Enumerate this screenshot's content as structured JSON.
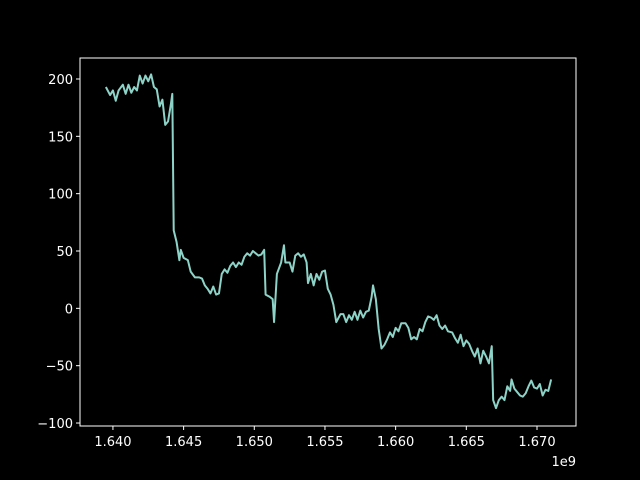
{
  "chart_data": {
    "type": "line",
    "x": [
      1639500000,
      1639800000,
      1640000000,
      1640200000,
      1640400000,
      1640700000,
      1640900000,
      1641100000,
      1641300000,
      1641500000,
      1641700000,
      1641900000,
      1642100000,
      1642300000,
      1642500000,
      1642700000,
      1642900000,
      1643100000,
      1643300000,
      1643500000,
      1643700000,
      1643900000,
      1644100000,
      1644200000,
      1644300000,
      1644500000,
      1644700000,
      1644800000,
      1645000000,
      1645300000,
      1645500000,
      1645800000,
      1646100000,
      1646300000,
      1646500000,
      1646700000,
      1646900000,
      1647100000,
      1647300000,
      1647500000,
      1647700000,
      1647900000,
      1648100000,
      1648300000,
      1648500000,
      1648700000,
      1648900000,
      1649100000,
      1649300000,
      1649500000,
      1649700000,
      1649900000,
      1650100000,
      1650300000,
      1650500000,
      1650700000,
      1650800000,
      1651100000,
      1651300000,
      1651400000,
      1651600000,
      1651900000,
      1652100000,
      1652200000,
      1652500000,
      1652700000,
      1652900000,
      1653100000,
      1653300000,
      1653500000,
      1653700000,
      1653800000,
      1654000000,
      1654200000,
      1654400000,
      1654600000,
      1654800000,
      1655000000,
      1655200000,
      1655400000,
      1655600000,
      1655800000,
      1656100000,
      1656300000,
      1656500000,
      1656700000,
      1656900000,
      1657100000,
      1657300000,
      1657500000,
      1657700000,
      1657900000,
      1658100000,
      1658300000,
      1658400000,
      1658600000,
      1658800000,
      1659000000,
      1659200000,
      1659400000,
      1659600000,
      1659800000,
      1660000000,
      1660200000,
      1660400000,
      1660700000,
      1660900000,
      1661100000,
      1661300000,
      1661500000,
      1661700000,
      1661900000,
      1662100000,
      1662300000,
      1662500000,
      1662700000,
      1662900000,
      1663100000,
      1663300000,
      1663500000,
      1663700000,
      1664000000,
      1664200000,
      1664400000,
      1664600000,
      1664800000,
      1665000000,
      1665200000,
      1665400000,
      1665600000,
      1665800000,
      1666000000,
      1666200000,
      1666400000,
      1666600000,
      1666800000,
      1666900000,
      1667100000,
      1667300000,
      1667500000,
      1667700000,
      1667900000,
      1668100000,
      1668200000,
      1668400000,
      1668600000,
      1668800000,
      1669000000,
      1669200000,
      1669400000,
      1669600000,
      1669800000,
      1670000000,
      1670200000,
      1670400000,
      1670600000,
      1670800000,
      1671000000
    ],
    "series": [
      {
        "color": "#8dd3c7",
        "values": [
          193,
          186,
          190,
          181,
          190,
          195,
          187,
          195,
          188,
          193,
          190,
          203,
          196,
          203,
          198,
          204,
          193,
          191,
          176,
          182,
          160,
          163,
          178,
          187,
          68,
          58,
          42,
          51,
          44,
          42,
          32,
          27,
          27,
          26,
          20,
          17,
          13,
          19,
          12,
          13,
          30,
          34,
          31,
          37,
          40,
          36,
          40,
          38,
          45,
          48,
          46,
          50,
          48,
          46,
          47,
          51,
          12,
          10,
          8,
          -12,
          30,
          40,
          55,
          40,
          40,
          32,
          46,
          48,
          45,
          47,
          40,
          22,
          30,
          20,
          30,
          25,
          32,
          33,
          17,
          12,
          3,
          -12,
          -5,
          -5,
          -12,
          -6,
          -10,
          -3,
          -10,
          -2,
          -8,
          -3,
          -2,
          10,
          20,
          8,
          -18,
          -35,
          -32,
          -27,
          -21,
          -25,
          -17,
          -20,
          -13,
          -13,
          -17,
          -27,
          -25,
          -27,
          -18,
          -20,
          -12,
          -7,
          -8,
          -10,
          -6,
          -15,
          -18,
          -15,
          -20,
          -21,
          -26,
          -30,
          -23,
          -33,
          -28,
          -31,
          -37,
          -42,
          -35,
          -48,
          -37,
          -42,
          -48,
          -33,
          -80,
          -87,
          -80,
          -77,
          -80,
          -68,
          -72,
          -62,
          -70,
          -73,
          -76,
          -77,
          -74,
          -68,
          -63,
          -69,
          -70,
          -66,
          -76,
          -71,
          -72,
          -62
        ]
      }
    ],
    "xlim": [
      1637670000,
      1672760000
    ],
    "ylim": [
      -102.6,
      218.3
    ],
    "xticks": [
      {
        "value": 1640000000,
        "label": "1.640"
      },
      {
        "value": 1645000000,
        "label": "1.645"
      },
      {
        "value": 1650000000,
        "label": "1.650"
      },
      {
        "value": 1655000000,
        "label": "1.655"
      },
      {
        "value": 1660000000,
        "label": "1.660"
      },
      {
        "value": 1665000000,
        "label": "1.665"
      },
      {
        "value": 1670000000,
        "label": "1.670"
      }
    ],
    "x_offset_label": "1e9",
    "yticks": [
      {
        "value": -100,
        "label": "−100"
      },
      {
        "value": -50,
        "label": "−50"
      },
      0,
      50,
      100,
      150,
      200
    ]
  }
}
